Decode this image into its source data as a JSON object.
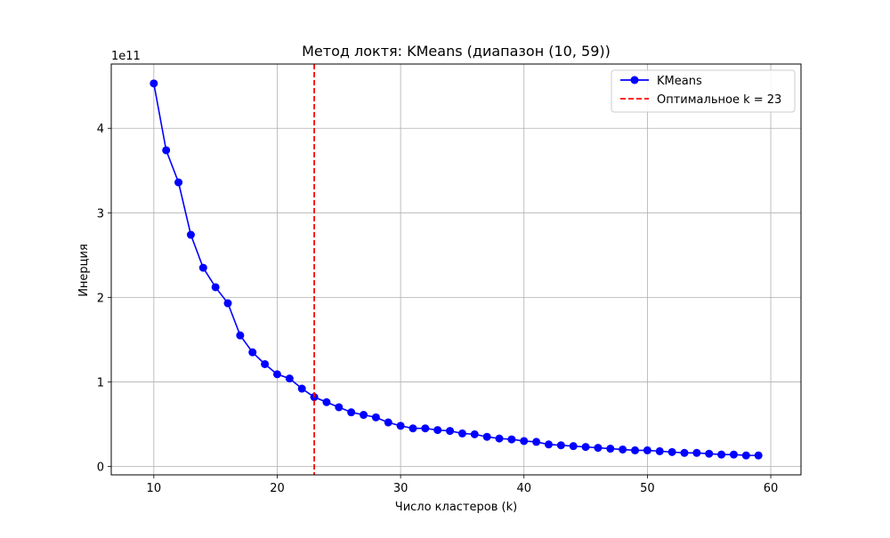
{
  "chart_data": {
    "type": "line",
    "title": "Метод локтя: KMeans (диапазон (10, 59))",
    "xlabel": "Число кластеров (k)",
    "ylabel": "Инерция",
    "y_offset_label": "1e11",
    "xlim": [
      6.55,
      62.45
    ],
    "ylim": [
      -0.1,
      4.76
    ],
    "x_ticks": [
      10,
      20,
      30,
      40,
      50,
      60
    ],
    "y_ticks": [
      0,
      1,
      2,
      3,
      4
    ],
    "grid": true,
    "legend_position": "top-right",
    "x": [
      10,
      11,
      12,
      13,
      14,
      15,
      16,
      17,
      18,
      19,
      20,
      21,
      22,
      23,
      24,
      25,
      26,
      27,
      28,
      29,
      30,
      31,
      32,
      33,
      34,
      35,
      36,
      37,
      38,
      39,
      40,
      41,
      42,
      43,
      44,
      45,
      46,
      47,
      48,
      49,
      50,
      51,
      52,
      53,
      54,
      55,
      56,
      57,
      58,
      59
    ],
    "series": [
      {
        "name": "KMeans",
        "color": "#0000ff",
        "marker": "circle",
        "values": [
          4.53,
          3.74,
          3.36,
          2.74,
          2.35,
          2.12,
          1.93,
          1.55,
          1.35,
          1.21,
          1.09,
          1.04,
          0.92,
          0.82,
          0.76,
          0.7,
          0.64,
          0.61,
          0.58,
          0.52,
          0.48,
          0.45,
          0.45,
          0.43,
          0.42,
          0.39,
          0.38,
          0.35,
          0.33,
          0.32,
          0.3,
          0.29,
          0.26,
          0.25,
          0.24,
          0.23,
          0.22,
          0.21,
          0.2,
          0.19,
          0.19,
          0.18,
          0.17,
          0.16,
          0.16,
          0.15,
          0.14,
          0.14,
          0.13,
          0.13
        ]
      }
    ],
    "vline": {
      "label": "Оптимальное k = 23",
      "x": 23,
      "color": "#ff0000",
      "style": "dashed"
    },
    "grid_color": "#b0b0b0"
  }
}
